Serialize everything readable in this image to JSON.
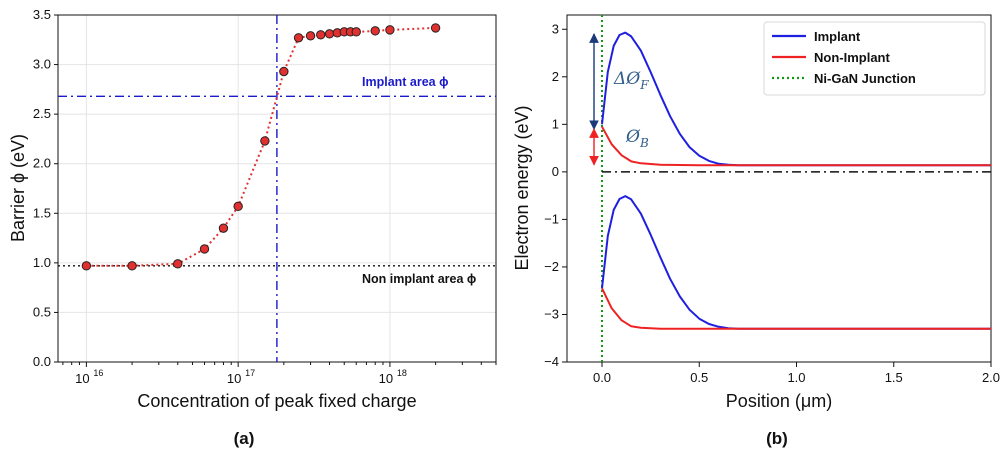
{
  "chart_data": [
    {
      "type": "scatter",
      "panel_label": "(a)",
      "xlabel": "Concentration of peak fixed charge",
      "ylabel": "Barrier ϕ (eV)",
      "xscale": "log",
      "xlim": [
        6500000000000000.0,
        5e+18
      ],
      "ylim": [
        0.0,
        3.5
      ],
      "xticks": [
        {
          "value": 1e+16,
          "label": "10",
          "sup": "16"
        },
        {
          "value": 1e+17,
          "label": "10",
          "sup": "17"
        },
        {
          "value": 1e+18,
          "label": "10",
          "sup": "18"
        }
      ],
      "yticks": [
        "0.0",
        "0.5",
        "1.0",
        "1.5",
        "2.0",
        "2.5",
        "3.0",
        "3.5"
      ],
      "grid": true,
      "series": [
        {
          "marker": "circle",
          "color": "#e03030",
          "edge": "#222222",
          "line_style": "dotted",
          "points": [
            [
              1e+16,
              0.97
            ],
            [
              2e+16,
              0.97
            ],
            [
              4e+16,
              0.99
            ],
            [
              6e+16,
              1.14
            ],
            [
              8e+16,
              1.35
            ],
            [
              1e+17,
              1.57
            ],
            [
              1.5e+17,
              2.23
            ],
            [
              2e+17,
              2.93
            ],
            [
              2.5e+17,
              3.27
            ],
            [
              3e+17,
              3.29
            ],
            [
              3.5e+17,
              3.3
            ],
            [
              4e+17,
              3.31
            ],
            [
              4.5e+17,
              3.32
            ],
            [
              5e+17,
              3.33
            ],
            [
              5.5e+17,
              3.33
            ],
            [
              6e+17,
              3.33
            ],
            [
              8e+17,
              3.34
            ],
            [
              1e+18,
              3.35
            ],
            [
              2e+18,
              3.37
            ]
          ]
        }
      ],
      "reference_lines": [
        {
          "orientation": "horizontal",
          "value": 2.68,
          "color": "#1a1acc",
          "style": "dashdot",
          "label": "Implant area ϕ"
        },
        {
          "orientation": "horizontal",
          "value": 0.97,
          "color": "#111111",
          "style": "dotted",
          "label": "Non implant area ϕ"
        },
        {
          "orientation": "vertical",
          "value": 1.8e+17,
          "color": "#1a1acc",
          "style": "dashdot"
        }
      ]
    },
    {
      "type": "line",
      "panel_label": "(b)",
      "xlabel": "Position (μm)",
      "ylabel": "Electron energy (eV)",
      "xlim": [
        -0.18,
        2.0
      ],
      "ylim": [
        -4,
        3.3
      ],
      "xticks": [
        "0.0",
        "0.5",
        "1.0",
        "1.5",
        "2.0"
      ],
      "xtick_values": [
        0,
        0.5,
        1.0,
        1.5,
        2.0
      ],
      "yticks": [
        "−4",
        "−3",
        "−2",
        "−1",
        "0",
        "1",
        "2",
        "3"
      ],
      "ytick_values": [
        -4,
        -3,
        -2,
        -1,
        0,
        1,
        2,
        3
      ],
      "legend": {
        "position": "top-right",
        "entries": [
          {
            "label": "Implant",
            "color": "#1f1fe0",
            "style": "solid"
          },
          {
            "label": "Non-Implant",
            "color": "#ee2222",
            "style": "solid"
          },
          {
            "label": "Ni-GaN Junction",
            "color": "#119911",
            "style": "dotted"
          }
        ]
      },
      "series": [
        {
          "name": "Implant",
          "color": "#1f1fe0",
          "x": [
            0,
            0.03,
            0.06,
            0.09,
            0.12,
            0.15,
            0.2,
            0.25,
            0.3,
            0.35,
            0.4,
            0.45,
            0.5,
            0.55,
            0.6,
            0.65,
            0.7,
            0.8,
            1.0,
            1.5,
            2.0
          ],
          "y": [
            1.0,
            2.1,
            2.65,
            2.88,
            2.93,
            2.85,
            2.55,
            2.1,
            1.62,
            1.17,
            0.8,
            0.52,
            0.34,
            0.23,
            0.17,
            0.15,
            0.14,
            0.14,
            0.14,
            0.14,
            0.14
          ]
        },
        {
          "name": "Implant",
          "color": "#1f1fe0",
          "x": [
            0,
            0.03,
            0.06,
            0.09,
            0.12,
            0.15,
            0.2,
            0.25,
            0.3,
            0.35,
            0.4,
            0.45,
            0.5,
            0.55,
            0.6,
            0.65,
            0.7,
            0.8,
            1.0,
            1.5,
            2.0
          ],
          "y": [
            -2.45,
            -1.35,
            -0.8,
            -0.57,
            -0.51,
            -0.58,
            -0.88,
            -1.32,
            -1.8,
            -2.25,
            -2.62,
            -2.9,
            -3.09,
            -3.2,
            -3.26,
            -3.29,
            -3.3,
            -3.3,
            -3.3,
            -3.3,
            -3.3
          ]
        },
        {
          "name": "Non-Implant",
          "color": "#ee2222",
          "x": [
            0,
            0.05,
            0.1,
            0.15,
            0.2,
            0.3,
            0.5,
            1.0,
            2.0
          ],
          "y": [
            0.95,
            0.58,
            0.35,
            0.22,
            0.18,
            0.15,
            0.14,
            0.14,
            0.14
          ]
        },
        {
          "name": "Non-Implant",
          "color": "#ee2222",
          "x": [
            0,
            0.05,
            0.1,
            0.15,
            0.2,
            0.3,
            0.5,
            1.0,
            2.0
          ],
          "y": [
            -2.45,
            -2.87,
            -3.12,
            -3.25,
            -3.28,
            -3.3,
            -3.3,
            -3.3,
            -3.3
          ]
        }
      ],
      "reference_lines": [
        {
          "orientation": "vertical",
          "value": 0,
          "color": "#119911",
          "style": "dotted"
        },
        {
          "orientation": "horizontal",
          "value": 0,
          "color": "#111111",
          "style": "dashdot"
        }
      ],
      "annotations": [
        {
          "text": "ΔØ",
          "sub": "F",
          "arrow": {
            "x": 0,
            "from": 0.9,
            "to": 2.9,
            "color": "#1a3a7a"
          }
        },
        {
          "text": "Ø",
          "sub": "B",
          "arrow": {
            "x": 0,
            "from": 0.15,
            "to": 0.9,
            "color": "#ee2222"
          }
        }
      ]
    }
  ]
}
